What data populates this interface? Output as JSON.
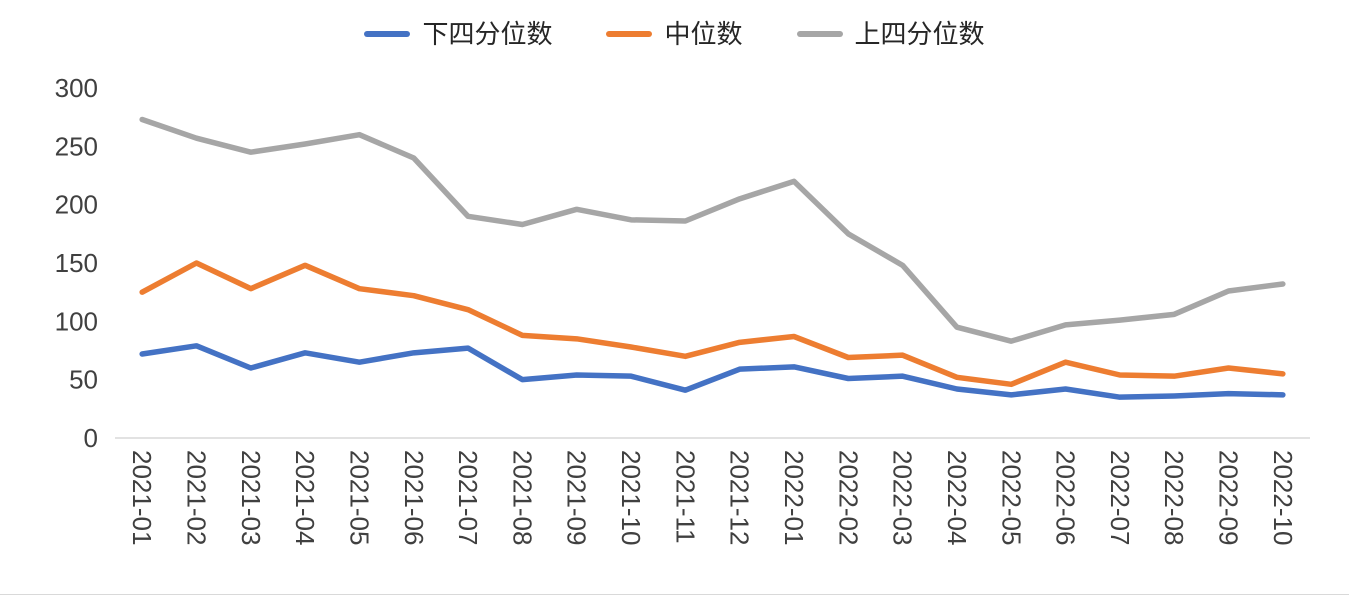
{
  "chart_data": {
    "type": "line",
    "title": "",
    "xlabel": "",
    "ylabel": "",
    "categories": [
      "2021-01",
      "2021-02",
      "2021-03",
      "2021-04",
      "2021-05",
      "2021-06",
      "2021-07",
      "2021-08",
      "2021-09",
      "2021-10",
      "2021-11",
      "2021-12",
      "2022-01",
      "2022-02",
      "2022-03",
      "2022-04",
      "2022-05",
      "2022-06",
      "2022-07",
      "2022-08",
      "2022-09",
      "2022-10"
    ],
    "series": [
      {
        "name": "下四分位数",
        "color": "#4472C4",
        "values": [
          72,
          79,
          60,
          73,
          65,
          73,
          77,
          50,
          54,
          53,
          41,
          59,
          61,
          51,
          53,
          42,
          37,
          42,
          35,
          36,
          38,
          37
        ]
      },
      {
        "name": "中位数",
        "color": "#ED7D31",
        "values": [
          125,
          150,
          128,
          148,
          128,
          122,
          110,
          88,
          85,
          78,
          70,
          82,
          87,
          69,
          71,
          52,
          46,
          65,
          54,
          53,
          60,
          55
        ]
      },
      {
        "name": "上四分位数",
        "color": "#A6A6A6",
        "values": [
          273,
          257,
          245,
          252,
          260,
          240,
          190,
          183,
          196,
          187,
          186,
          205,
          220,
          175,
          148,
          95,
          83,
          97,
          101,
          106,
          126,
          132
        ]
      }
    ],
    "ylim": [
      0,
      300
    ],
    "yticks": [
      0,
      50,
      100,
      150,
      200,
      250,
      300
    ],
    "legend_position": "top",
    "grid": false,
    "x_label_rotation": 90,
    "axis_color": "#D9D9D9",
    "tick_label_color": "#404040"
  }
}
